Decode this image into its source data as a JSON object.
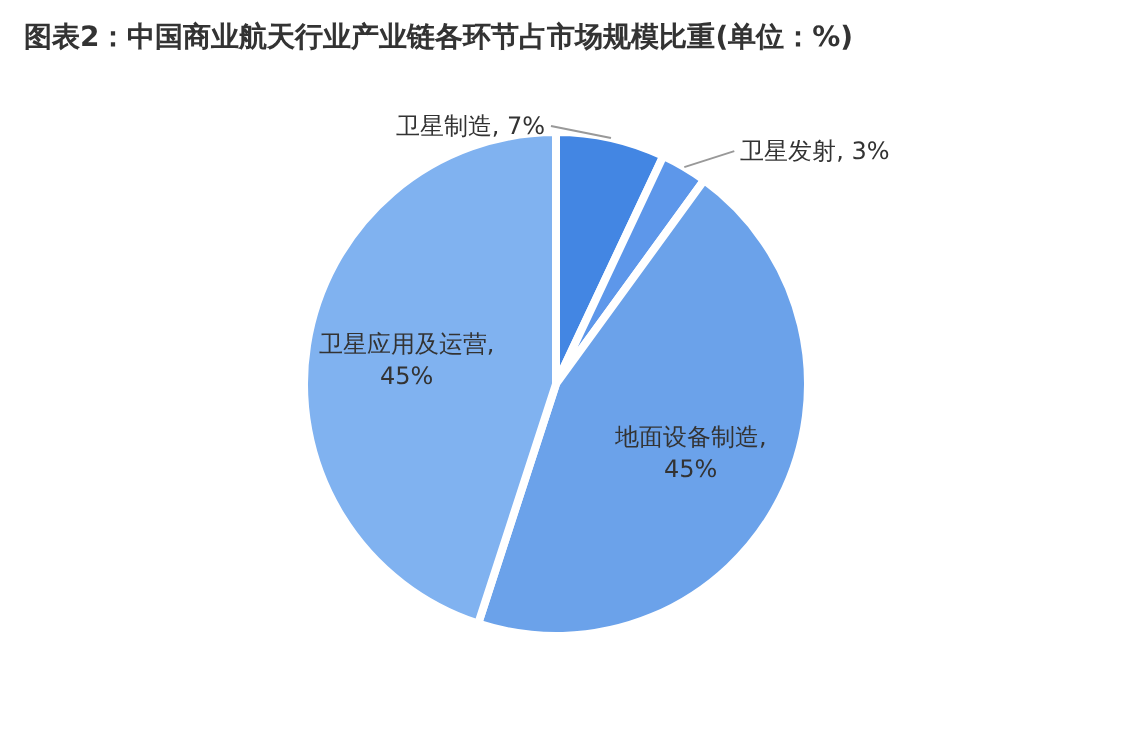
{
  "chart_data": {
    "type": "pie",
    "title": "图表2：中国商业航天行业产业链各环节占市场规模比重(单位：%)",
    "categories": [
      "卫星制造",
      "卫星发射",
      "地面设备制造",
      "卫星应用及运营"
    ],
    "values": [
      7,
      3,
      45,
      45
    ],
    "value_labels": [
      ", 7%",
      ", 3%",
      ", 45%",
      ", 45%"
    ],
    "colors": [
      "#4386e3",
      "#5d97ea",
      "#6ba2ea",
      "#80b2f0"
    ],
    "legend": false
  }
}
